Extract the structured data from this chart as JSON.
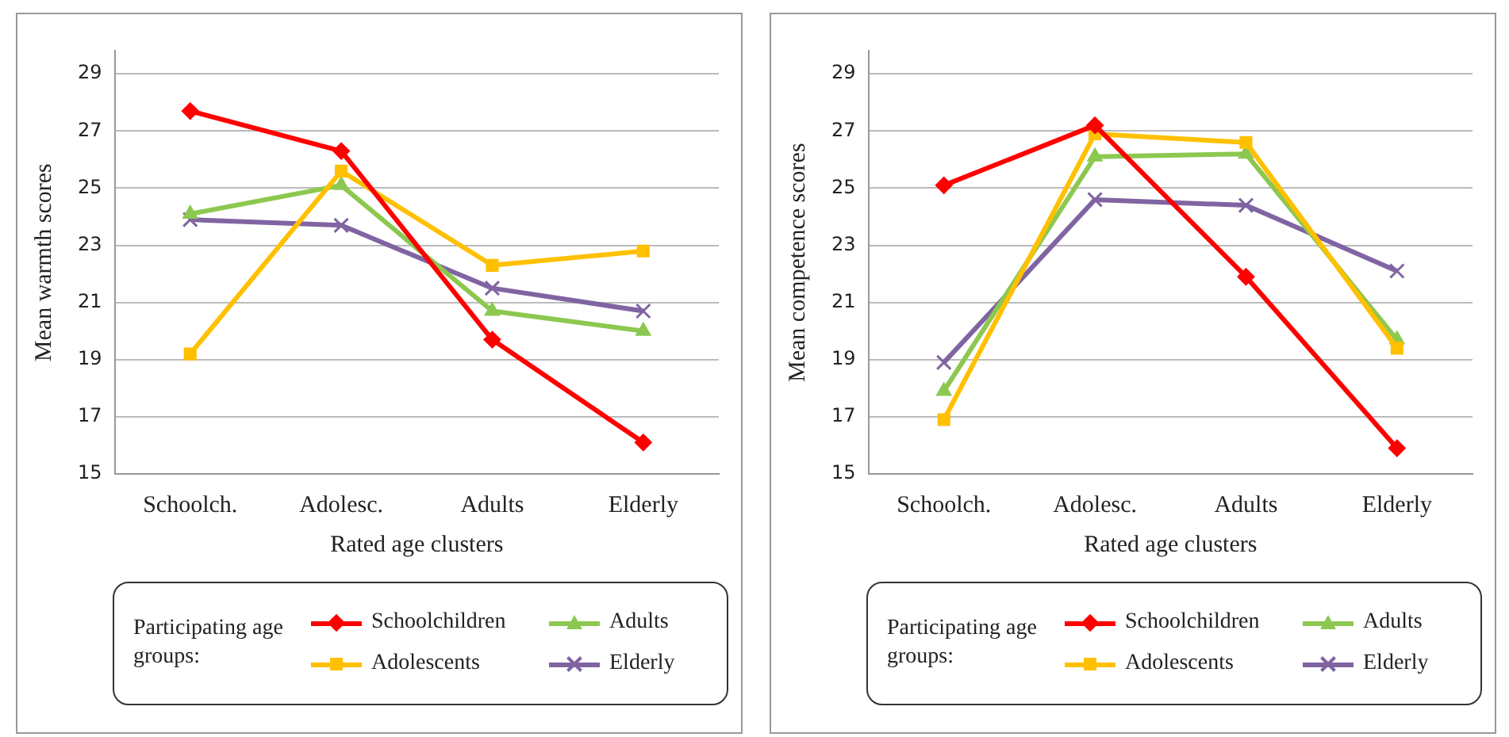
{
  "chart_data": [
    {
      "type": "line",
      "ylabel": "Mean warmth scores",
      "xlabel": "Rated age clusters",
      "legend_title": "Participating age groups:",
      "legend": "bottom",
      "grid": "y",
      "categories": [
        "Schoolch.",
        "Adolesc.",
        "Adults",
        "Elderly"
      ],
      "ylim": [
        15,
        29.8
      ],
      "yticks": [
        15,
        17,
        19,
        21,
        23,
        25,
        27,
        29
      ],
      "series": [
        {
          "name": "Schoolchildren",
          "color": "#ff0000",
          "marker": "diamond",
          "values": [
            27.7,
            26.3,
            19.7,
            16.1
          ]
        },
        {
          "name": "Adolescents",
          "color": "#ffc000",
          "marker": "square",
          "values": [
            19.2,
            25.6,
            22.3,
            22.8
          ]
        },
        {
          "name": "Adults",
          "color": "#8cc850",
          "marker": "triangle",
          "values": [
            24.1,
            25.1,
            20.7,
            20.0
          ]
        },
        {
          "name": "Elderly",
          "color": "#8064a2",
          "marker": "cross",
          "values": [
            23.9,
            23.7,
            21.5,
            20.7
          ]
        }
      ]
    },
    {
      "type": "line",
      "ylabel": "Mean competence scores",
      "xlabel": "Rated age clusters",
      "legend_title": "Participating age groups:",
      "legend": "bottom",
      "grid": "y",
      "categories": [
        "Schoolch.",
        "Adolesc.",
        "Adults",
        "Elderly"
      ],
      "ylim": [
        15,
        29.8
      ],
      "yticks": [
        15,
        17,
        19,
        21,
        23,
        25,
        27,
        29
      ],
      "series": [
        {
          "name": "Schoolchildren",
          "color": "#ff0000",
          "marker": "diamond",
          "values": [
            25.1,
            27.2,
            21.9,
            15.9
          ]
        },
        {
          "name": "Adolescents",
          "color": "#ffc000",
          "marker": "square",
          "values": [
            16.9,
            26.9,
            26.6,
            19.4
          ]
        },
        {
          "name": "Adults",
          "color": "#8cc850",
          "marker": "triangle",
          "values": [
            17.9,
            26.1,
            26.2,
            19.7
          ]
        },
        {
          "name": "Elderly",
          "color": "#8064a2",
          "marker": "cross",
          "values": [
            18.9,
            24.6,
            24.4,
            22.1
          ]
        }
      ]
    }
  ]
}
